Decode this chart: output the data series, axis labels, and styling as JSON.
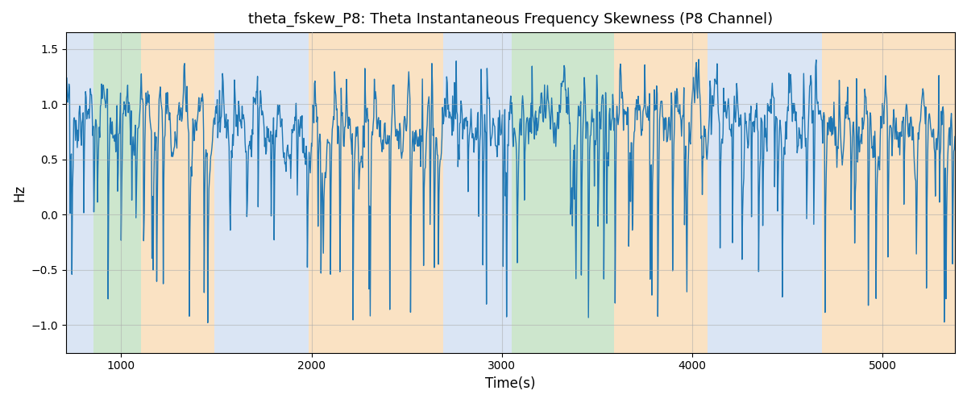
{
  "title": "theta_fskew_P8: Theta Instantaneous Frequency Skewness (P8 Channel)",
  "xlabel": "Time(s)",
  "ylabel": "Hz",
  "ylim": [
    -1.25,
    1.65
  ],
  "yticks": [
    -1.0,
    -0.5,
    0.0,
    0.5,
    1.0,
    1.5
  ],
  "xlim": [
    710,
    5380
  ],
  "xticks": [
    1000,
    2000,
    3000,
    4000,
    5000
  ],
  "line_color": "#1f77b4",
  "line_width": 1.0,
  "bands": [
    {
      "xmin": 710,
      "xmax": 855,
      "color": "#aec6e8",
      "alpha": 0.45
    },
    {
      "xmin": 855,
      "xmax": 1105,
      "color": "#90c990",
      "alpha": 0.45
    },
    {
      "xmin": 1105,
      "xmax": 1490,
      "color": "#f5c07a",
      "alpha": 0.45
    },
    {
      "xmin": 1490,
      "xmax": 1985,
      "color": "#aec6e8",
      "alpha": 0.45
    },
    {
      "xmin": 1985,
      "xmax": 2690,
      "color": "#f5c07a",
      "alpha": 0.45
    },
    {
      "xmin": 2690,
      "xmax": 3050,
      "color": "#aec6e8",
      "alpha": 0.45
    },
    {
      "xmin": 3050,
      "xmax": 3590,
      "color": "#90c990",
      "alpha": 0.45
    },
    {
      "xmin": 3590,
      "xmax": 4080,
      "color": "#f5c07a",
      "alpha": 0.45
    },
    {
      "xmin": 4080,
      "xmax": 4680,
      "color": "#aec6e8",
      "alpha": 0.45
    },
    {
      "xmin": 4680,
      "xmax": 5380,
      "color": "#f5c07a",
      "alpha": 0.45
    }
  ],
  "figsize": [
    12.0,
    5.0
  ],
  "dpi": 100,
  "seed": 7,
  "t_start": 710,
  "t_end": 5380,
  "n_points": 1500
}
